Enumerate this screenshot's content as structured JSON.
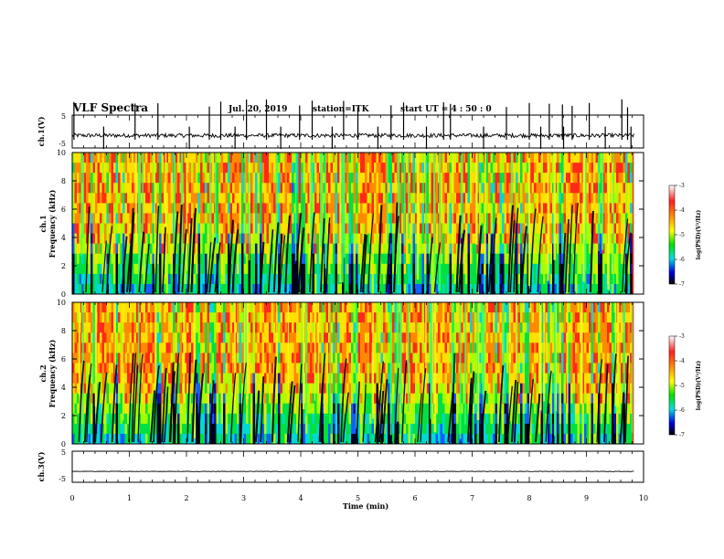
{
  "header": {
    "title": "VLF Spectra",
    "date": "Jul. 20, 2019",
    "station": "station=ITK",
    "start": "start UT =   4 : 50 : 0"
  },
  "chart_data": [
    {
      "type": "line",
      "name": "ch1-waveform",
      "ylabel": "ch.1(V)",
      "ylim": [
        -5,
        5
      ],
      "yticks": [
        "5",
        "-5"
      ],
      "baseline": -1.2,
      "noise": 0.6,
      "spikes": [
        0.03,
        0.55,
        1.1,
        1.5,
        2.05,
        2.4,
        2.6,
        2.85,
        3.05,
        3.4,
        3.65,
        3.98,
        4.2,
        4.55,
        4.75,
        5.0,
        5.35,
        5.58,
        5.8,
        6.2,
        6.5,
        6.62,
        7.2,
        7.6,
        8.0,
        8.2,
        8.35,
        8.58,
        8.6,
        8.75,
        9.05,
        9.33,
        9.62,
        9.72,
        9.78
      ]
    },
    {
      "type": "heatmap",
      "name": "ch1-spectrogram",
      "ylabel": "ch.1\nFrequency (kHz)",
      "ylim": [
        0,
        10
      ],
      "yticks": [
        "0",
        "2",
        "4",
        "6",
        "8",
        "10"
      ],
      "x_extent": [
        0,
        9.83
      ],
      "colorbar": {
        "range": [
          -7,
          -3
        ],
        "ticks": [
          "-3",
          "-4",
          "-5",
          "-6",
          "-7"
        ],
        "label": "log(PSD)(V²/Hz)"
      }
    },
    {
      "type": "heatmap",
      "name": "ch2-spectrogram",
      "ylabel": "ch.2\nFrequency (kHz)",
      "ylim": [
        0,
        10
      ],
      "yticks": [
        "0",
        "2",
        "4",
        "6",
        "8",
        "10"
      ],
      "x_extent": [
        0,
        9.83
      ],
      "colorbar": {
        "range": [
          -7,
          -3
        ],
        "ticks": [
          "-3",
          "-4",
          "-5",
          "-6",
          "-7"
        ],
        "label": "log(PSD)(V²/Hz)"
      }
    },
    {
      "type": "line",
      "name": "ch3-waveform",
      "ylabel": "ch.3(V)",
      "ylim": [
        -5,
        5
      ],
      "yticks": [
        "5",
        "-5"
      ],
      "baseline": -1.5,
      "noise": 0.08,
      "spikes": []
    }
  ],
  "x_axis": {
    "label": "Time (min)",
    "xlim": [
      0,
      10
    ],
    "ticks": [
      "0",
      "1",
      "2",
      "3",
      "4",
      "5",
      "6",
      "7",
      "8",
      "9",
      "10"
    ]
  }
}
